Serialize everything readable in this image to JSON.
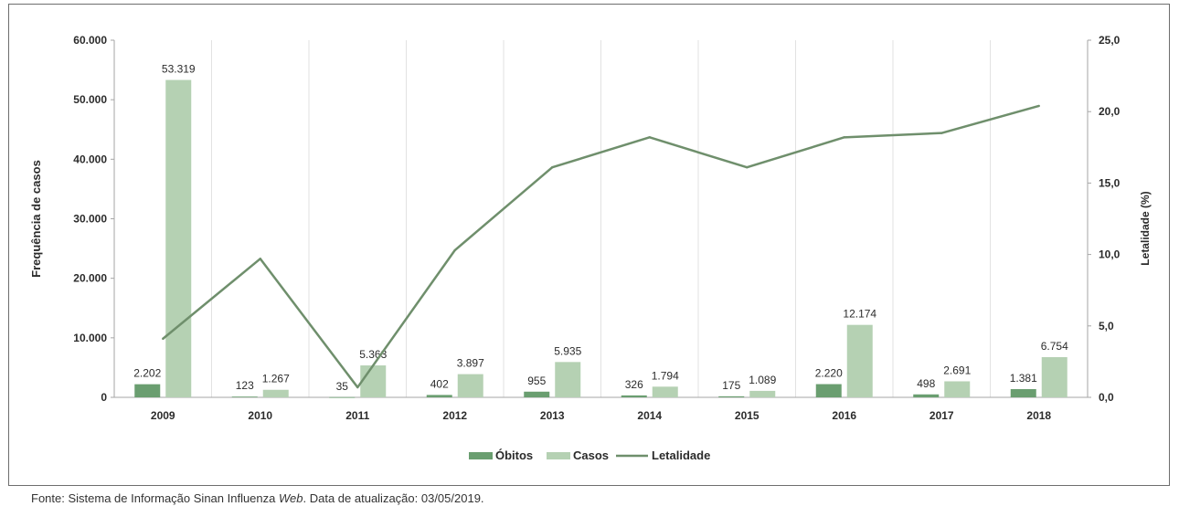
{
  "chart_data": {
    "type": "bar",
    "categories": [
      "2009",
      "2010",
      "2011",
      "2012",
      "2013",
      "2014",
      "2015",
      "2016",
      "2017",
      "2018"
    ],
    "series": [
      {
        "name": "Óbitos",
        "kind": "bar",
        "axis": "left",
        "values": [
          2202,
          123,
          35,
          402,
          955,
          326,
          175,
          2220,
          498,
          1381
        ],
        "labels": [
          "2.202",
          "123",
          "35",
          "402",
          "955",
          "326",
          "175",
          "2.220",
          "498",
          "1.381"
        ]
      },
      {
        "name": "Casos",
        "kind": "bar",
        "axis": "left",
        "values": [
          53319,
          1267,
          5363,
          3897,
          5935,
          1794,
          1089,
          12174,
          2691,
          6754
        ],
        "labels": [
          "53.319",
          "1.267",
          "5.363",
          "3.897",
          "5.935",
          "1.794",
          "1.089",
          "12.174",
          "2.691",
          "6.754"
        ]
      },
      {
        "name": "Letalidade",
        "kind": "line",
        "axis": "right",
        "values": [
          4.1,
          9.7,
          0.7,
          10.3,
          16.1,
          18.2,
          16.1,
          18.2,
          18.5,
          20.4
        ]
      }
    ],
    "ylabel": "Frequência de casos",
    "y2label": "Letalidade (%)",
    "ylim": [
      0,
      60000
    ],
    "y2lim": [
      0,
      25
    ],
    "yticks": [
      "0",
      "10.000",
      "20.000",
      "30.000",
      "40.000",
      "50.000",
      "60.000"
    ],
    "y2ticks": [
      "0,0",
      "5,0",
      "10,0",
      "15,0",
      "20,0",
      "25,0"
    ],
    "legend_position": "bottom",
    "grid": "vertical",
    "colors": {
      "obitos": "#6a9e70",
      "casos": "#b5d1b3",
      "letalidade": "#6f8f6c",
      "axis": "#a6a6a6",
      "grid": "#e2e2e2",
      "text": "#2b2b2b"
    }
  },
  "source": {
    "prefix": "Fonte: Sistema de Informação Sinan Influenza ",
    "italic": "Web",
    "suffix": ". Data de atualização: 03/05/2019."
  }
}
